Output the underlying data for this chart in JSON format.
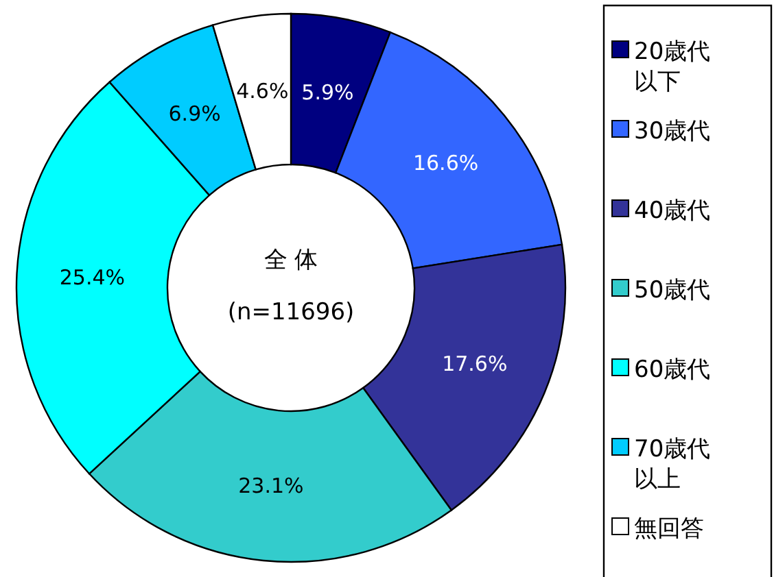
{
  "chart_data": {
    "type": "donut",
    "categories": [
      "20歳代以下",
      "30歳代",
      "40歳代",
      "50歳代",
      "60歳代",
      "70歳代以上",
      "無回答"
    ],
    "values": [
      5.9,
      16.6,
      17.6,
      23.1,
      25.4,
      6.9,
      4.6
    ],
    "colors": [
      "#000080",
      "#3366ff",
      "#333399",
      "#33cccc",
      "#00ffff",
      "#00ccff",
      "#ffffff"
    ],
    "value_labels": [
      "5.9%",
      "16.6%",
      "17.6%",
      "23.1%",
      "25.4%",
      "6.9%",
      "4.6%"
    ],
    "annotations": [
      "全 体",
      "(n=11696)"
    ],
    "legend": "right"
  }
}
